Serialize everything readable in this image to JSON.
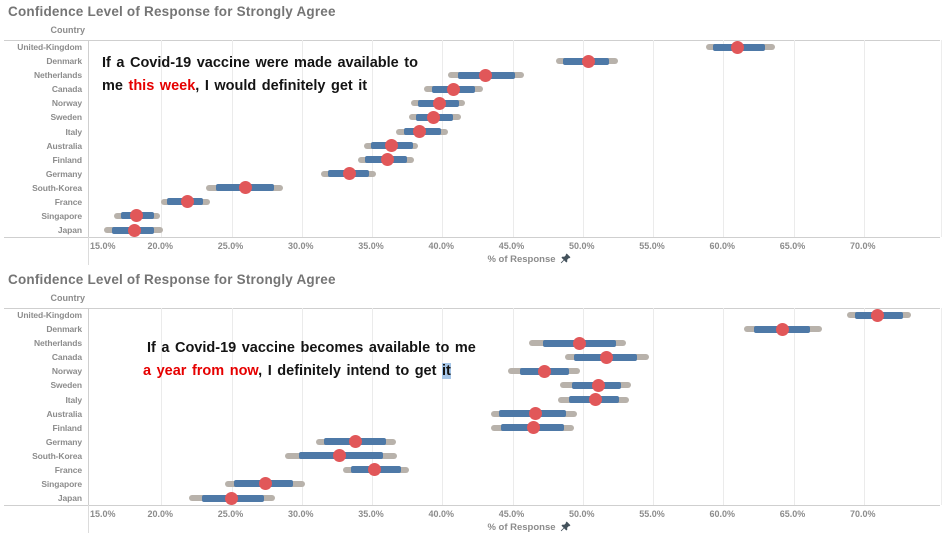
{
  "colors": {
    "point": "#e15759",
    "inner_bar": "#4e79a7",
    "outer_bar": "#b8b2ab",
    "title_text": "#757575",
    "label_text": "#8c8c8c",
    "annotation_red": "#e60000",
    "selection_highlight": "#a6c6e8",
    "gridline": "#ebebeb",
    "axis_line": "#cfcfcf"
  },
  "chart_data": [
    {
      "type": "scatter",
      "subtype": "dot-with-confidence-intervals",
      "title": "Confidence Level of Response for Strongly Agree",
      "row_header": "Country",
      "xlabel": "% of Response",
      "xlabel_icon": "pushpin-icon",
      "x_tick_labels": [
        "15.0%",
        "20.0%",
        "25.0%",
        "30.0%",
        "35.0%",
        "40.0%",
        "45.0%",
        "50.0%",
        "55.0%",
        "60.0%",
        "65.0%",
        "70.0%"
      ],
      "x_tick_values": [
        15,
        20,
        25,
        30,
        35,
        40,
        45,
        50,
        55,
        60,
        65,
        70
      ],
      "xlim": [
        14.9,
        75.6
      ],
      "grid": true,
      "annotation": {
        "lines": [
          [
            {
              "text": "If a Covid-19 vaccine were made available to",
              "color": "black"
            }
          ],
          [
            {
              "text": "me ",
              "color": "black"
            },
            {
              "text": "this week",
              "color": "red"
            },
            {
              "text": ", I would definitely get it",
              "color": "black"
            }
          ]
        ]
      },
      "countries": [
        "United-Kingdom",
        "Denmark",
        "Netherlands",
        "Canada",
        "Norway",
        "Sweden",
        "Italy",
        "Australia",
        "Finland",
        "Germany",
        "South-Korea",
        "France",
        "Singapore",
        "Japan"
      ],
      "points": [
        61.0,
        50.4,
        43.1,
        40.8,
        39.8,
        39.4,
        38.4,
        36.4,
        36.1,
        33.4,
        26.0,
        21.9,
        18.2,
        18.1
      ],
      "inner_intervals": [
        [
          59.3,
          63.0
        ],
        [
          48.6,
          51.9
        ],
        [
          41.1,
          45.2
        ],
        [
          39.3,
          42.3
        ],
        [
          38.3,
          41.2
        ],
        [
          38.1,
          40.8
        ],
        [
          37.3,
          39.9
        ],
        [
          34.9,
          37.9
        ],
        [
          34.5,
          37.5
        ],
        [
          31.9,
          34.8
        ],
        [
          23.9,
          28.0
        ],
        [
          20.4,
          23.0
        ],
        [
          17.1,
          19.5
        ],
        [
          16.5,
          19.5
        ]
      ],
      "outer_intervals": [
        [
          58.8,
          63.7
        ],
        [
          48.1,
          52.5
        ],
        [
          40.4,
          45.8
        ],
        [
          38.7,
          42.9
        ],
        [
          37.8,
          41.6
        ],
        [
          37.6,
          41.3
        ],
        [
          36.7,
          40.4
        ],
        [
          34.4,
          38.3
        ],
        [
          34.0,
          38.0
        ],
        [
          31.4,
          35.3
        ],
        [
          23.2,
          28.7
        ],
        [
          20.0,
          23.5
        ],
        [
          16.6,
          19.9
        ],
        [
          15.9,
          20.1
        ]
      ]
    },
    {
      "type": "scatter",
      "subtype": "dot-with-confidence-intervals",
      "title": "Confidence Level of Response for Strongly Agree",
      "row_header": "Country",
      "xlabel": "% of Response",
      "xlabel_icon": "pushpin-icon",
      "x_tick_labels": [
        "15.0%",
        "20.0%",
        "25.0%",
        "30.0%",
        "35.0%",
        "40.0%",
        "45.0%",
        "50.0%",
        "55.0%",
        "60.0%",
        "65.0%",
        "70.0%"
      ],
      "x_tick_values": [
        15,
        20,
        25,
        30,
        35,
        40,
        45,
        50,
        55,
        60,
        65,
        70
      ],
      "xlim": [
        14.9,
        75.6
      ],
      "grid": true,
      "annotation": {
        "lines": [
          [
            {
              "text": "If a Covid-19 vaccine becomes available to me",
              "color": "black"
            }
          ],
          [
            {
              "text": "a year from now",
              "color": "red"
            },
            {
              "text": ", I definitely intend to get ",
              "color": "black"
            },
            {
              "text": "it",
              "color": "black",
              "highlight": true
            }
          ]
        ]
      },
      "countries": [
        "United-Kingdom",
        "Denmark",
        "Netherlands",
        "Canada",
        "Norway",
        "Sweden",
        "Italy",
        "Australia",
        "Finland",
        "Germany",
        "South-Korea",
        "France",
        "Singapore",
        "Japan"
      ],
      "points": [
        71.0,
        64.2,
        49.8,
        51.7,
        47.3,
        51.1,
        50.9,
        46.6,
        46.5,
        33.8,
        32.7,
        35.2,
        27.4,
        25.0
      ],
      "inner_intervals": [
        [
          69.4,
          72.8
        ],
        [
          62.2,
          66.2
        ],
        [
          47.2,
          52.4
        ],
        [
          49.4,
          53.9
        ],
        [
          45.5,
          49.0
        ],
        [
          49.2,
          52.7
        ],
        [
          49.0,
          52.6
        ],
        [
          44.0,
          48.8
        ],
        [
          44.2,
          48.7
        ],
        [
          31.6,
          36.0
        ],
        [
          29.8,
          35.8
        ],
        [
          33.5,
          37.1
        ],
        [
          25.2,
          29.4
        ],
        [
          22.9,
          27.3
        ]
      ],
      "outer_intervals": [
        [
          68.8,
          73.4
        ],
        [
          61.5,
          67.0
        ],
        [
          46.2,
          53.1
        ],
        [
          48.7,
          54.7
        ],
        [
          44.7,
          49.8
        ],
        [
          48.4,
          53.4
        ],
        [
          48.2,
          53.3
        ],
        [
          43.5,
          49.6
        ],
        [
          43.5,
          49.4
        ],
        [
          31.0,
          36.7
        ],
        [
          28.8,
          36.8
        ],
        [
          32.9,
          37.6
        ],
        [
          24.5,
          30.2
        ],
        [
          22.0,
          28.1
        ]
      ]
    }
  ]
}
